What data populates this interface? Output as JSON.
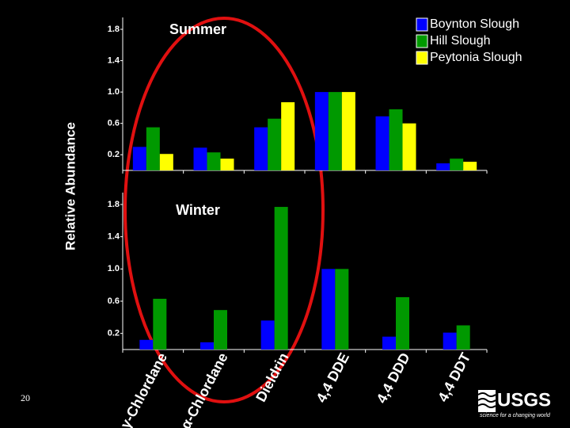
{
  "chart_data": [
    {
      "type": "bar",
      "title": "Summer",
      "ylabel": "Relative Abundance",
      "ylim": [
        0,
        1.8
      ],
      "yticks": [
        0.2,
        0.6,
        {
          "value": 1,
          "label": "1.0"
        },
        1.4,
        1.8
      ],
      "legend": "top-right",
      "series": [
        {
          "name": "Boynton Slough",
          "color": "#0000ff",
          "values": [
            0.3,
            0.29,
            0.55,
            1.0,
            0.69,
            0.09
          ]
        },
        {
          "name": "Hill Slough",
          "color": "#009900",
          "values": [
            0.55,
            0.23,
            0.66,
            1.0,
            0.78,
            0.15
          ]
        },
        {
          "name": "Peytonia Slough",
          "color": "#ffff00",
          "values": [
            0.21,
            0.15,
            0.87,
            1.0,
            0.6,
            0.11
          ]
        }
      ]
    },
    {
      "type": "bar",
      "title": "Winter",
      "categories": [
        "γ-Chlordane",
        "α-Chlordane",
        "Dieldrin",
        "4,4 DDE",
        "4,4 DDD",
        "4,4 DDT"
      ],
      "ylim": [
        0,
        1.8
      ],
      "yticks": [
        0.2,
        0.6,
        {
          "value": 1,
          "label": "1.0"
        },
        1.4,
        1.8
      ],
      "series": [
        {
          "color": "#0000ff",
          "values": [
            0.12,
            0.09,
            0.36,
            1.0,
            0.16,
            0.21
          ]
        },
        {
          "color": "#009900",
          "values": [
            0.63,
            0.49,
            1.77,
            1.0,
            0.65,
            0.3
          ]
        }
      ]
    }
  ],
  "slide": {
    "page_number": "20",
    "logo": "USGS",
    "logo_tagline": "science for a changing world"
  }
}
